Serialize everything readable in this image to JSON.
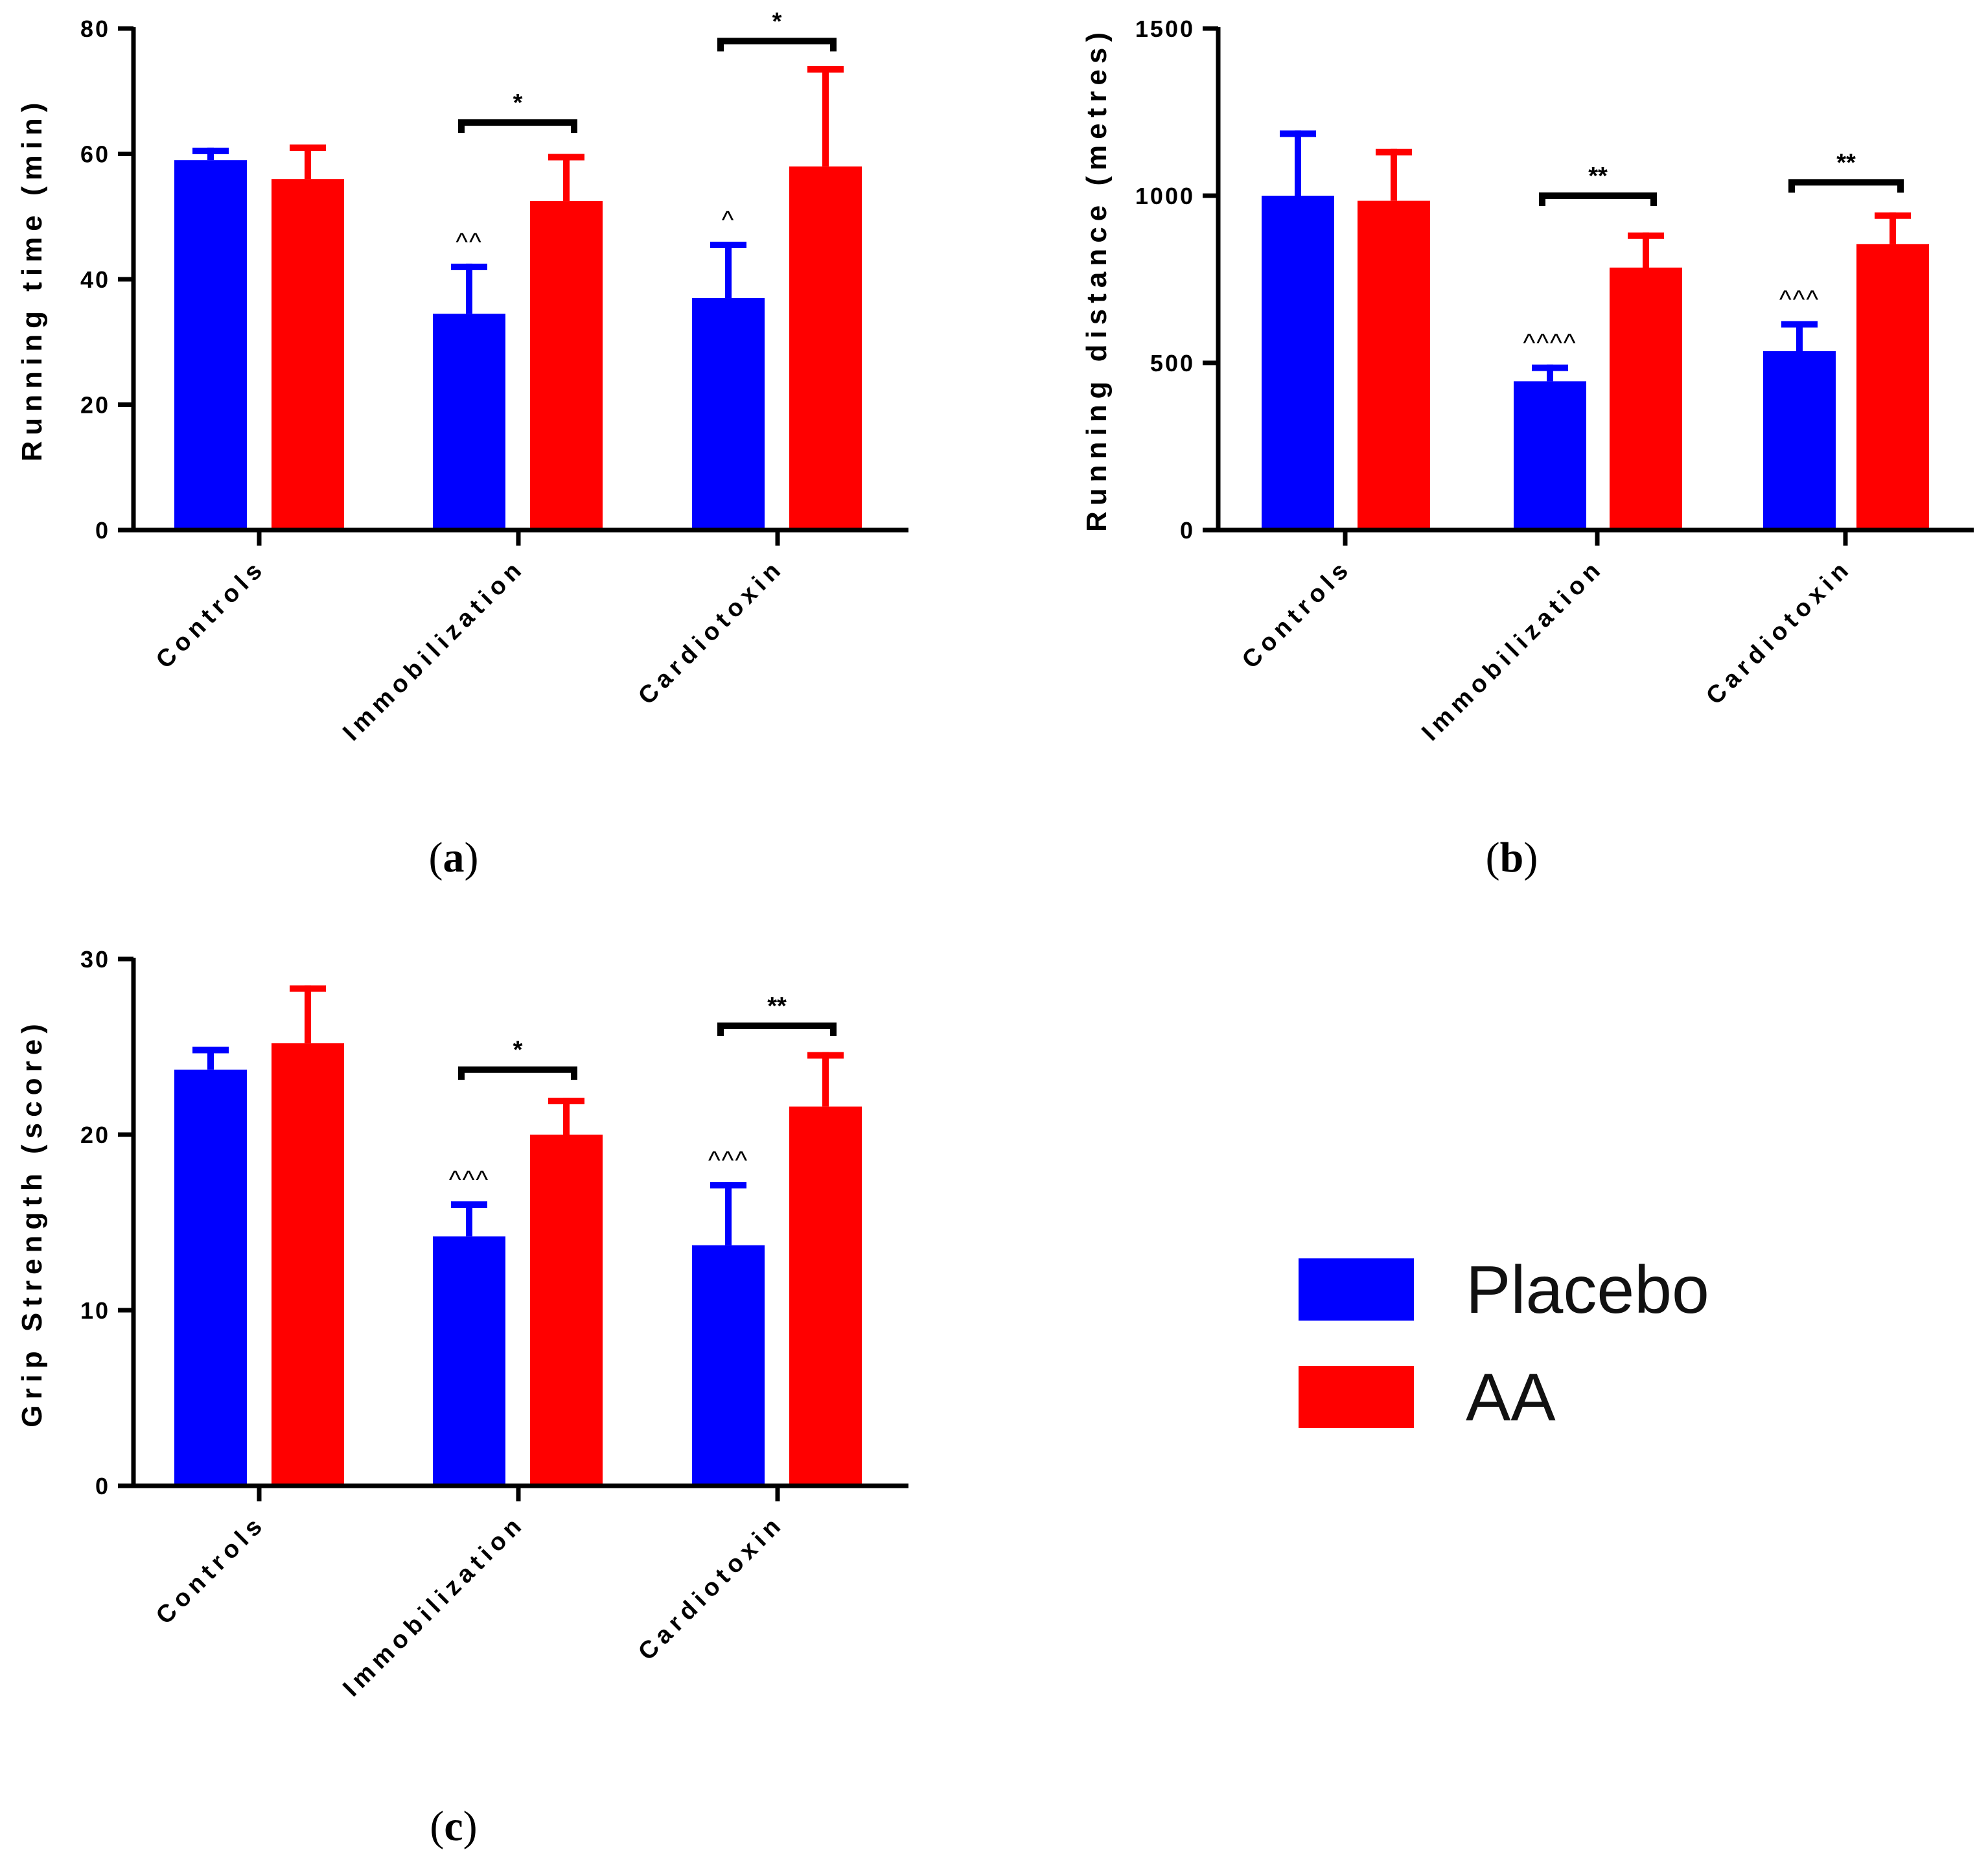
{
  "colors": {
    "placebo": "#0000ff",
    "aa": "#ff0000",
    "axis": "#000000"
  },
  "legend": {
    "items": [
      {
        "label": "Placebo",
        "color": "#0000ff"
      },
      {
        "label": "AA",
        "color": "#ff0000"
      }
    ],
    "position": "lower-right"
  },
  "panel_labels": [
    "a",
    "b",
    "c"
  ],
  "chart_data": [
    {
      "id": "a",
      "type": "bar",
      "categories": [
        "Controls",
        "Immobilization",
        "Cardiotoxin"
      ],
      "ylabel": "Running time (min)",
      "xlabel": "",
      "ylim": [
        0,
        80
      ],
      "yticks": [
        0,
        20,
        40,
        60,
        80
      ],
      "series": [
        {
          "name": "Placebo",
          "values": [
            59,
            34.5,
            37
          ],
          "errors": [
            2,
            8,
            9
          ]
        },
        {
          "name": "AA",
          "values": [
            56,
            52.5,
            58
          ],
          "errors": [
            5.5,
            7.5,
            16
          ]
        }
      ],
      "significance": [
        {
          "category": 1,
          "label": "*",
          "y": 65
        },
        {
          "category": 2,
          "label": "*",
          "y": 78
        }
      ],
      "vs_control_marks": [
        "",
        "^^",
        "^"
      ]
    },
    {
      "id": "b",
      "type": "bar",
      "categories": [
        "Controls",
        "Immobilization",
        "Cardiotoxin"
      ],
      "ylabel": "Running distance (metres)",
      "xlabel": "",
      "ylim": [
        0,
        1500
      ],
      "yticks": [
        0,
        500,
        1000,
        1500
      ],
      "series": [
        {
          "name": "Placebo",
          "values": [
            1000,
            445,
            535
          ],
          "errors": [
            195,
            50,
            90
          ]
        },
        {
          "name": "AA",
          "values": [
            985,
            785,
            855
          ],
          "errors": [
            155,
            105,
            95
          ]
        }
      ],
      "significance": [
        {
          "category": 1,
          "label": "**",
          "y": 1000
        },
        {
          "category": 2,
          "label": "**",
          "y": 1040
        }
      ],
      "vs_control_marks": [
        "",
        "^^^^",
        "^^^"
      ]
    },
    {
      "id": "c",
      "type": "bar",
      "categories": [
        "Controls",
        "Immobilization",
        "Cardiotoxin"
      ],
      "ylabel": "Grip Strength (score)",
      "xlabel": "",
      "ylim": [
        0,
        30
      ],
      "yticks": [
        0,
        10,
        20,
        30
      ],
      "series": [
        {
          "name": "Placebo",
          "values": [
            23.7,
            14.2,
            13.7
          ],
          "errors": [
            1.3,
            2,
            3.6
          ]
        },
        {
          "name": "AA",
          "values": [
            25.2,
            20,
            21.6
          ],
          "errors": [
            3.3,
            2.1,
            3.1
          ]
        }
      ],
      "significance": [
        {
          "category": 1,
          "label": "*",
          "y": 23.7
        },
        {
          "category": 2,
          "label": "**",
          "y": 26.2
        }
      ],
      "vs_control_marks": [
        "",
        "^^^",
        "^^^"
      ]
    }
  ]
}
